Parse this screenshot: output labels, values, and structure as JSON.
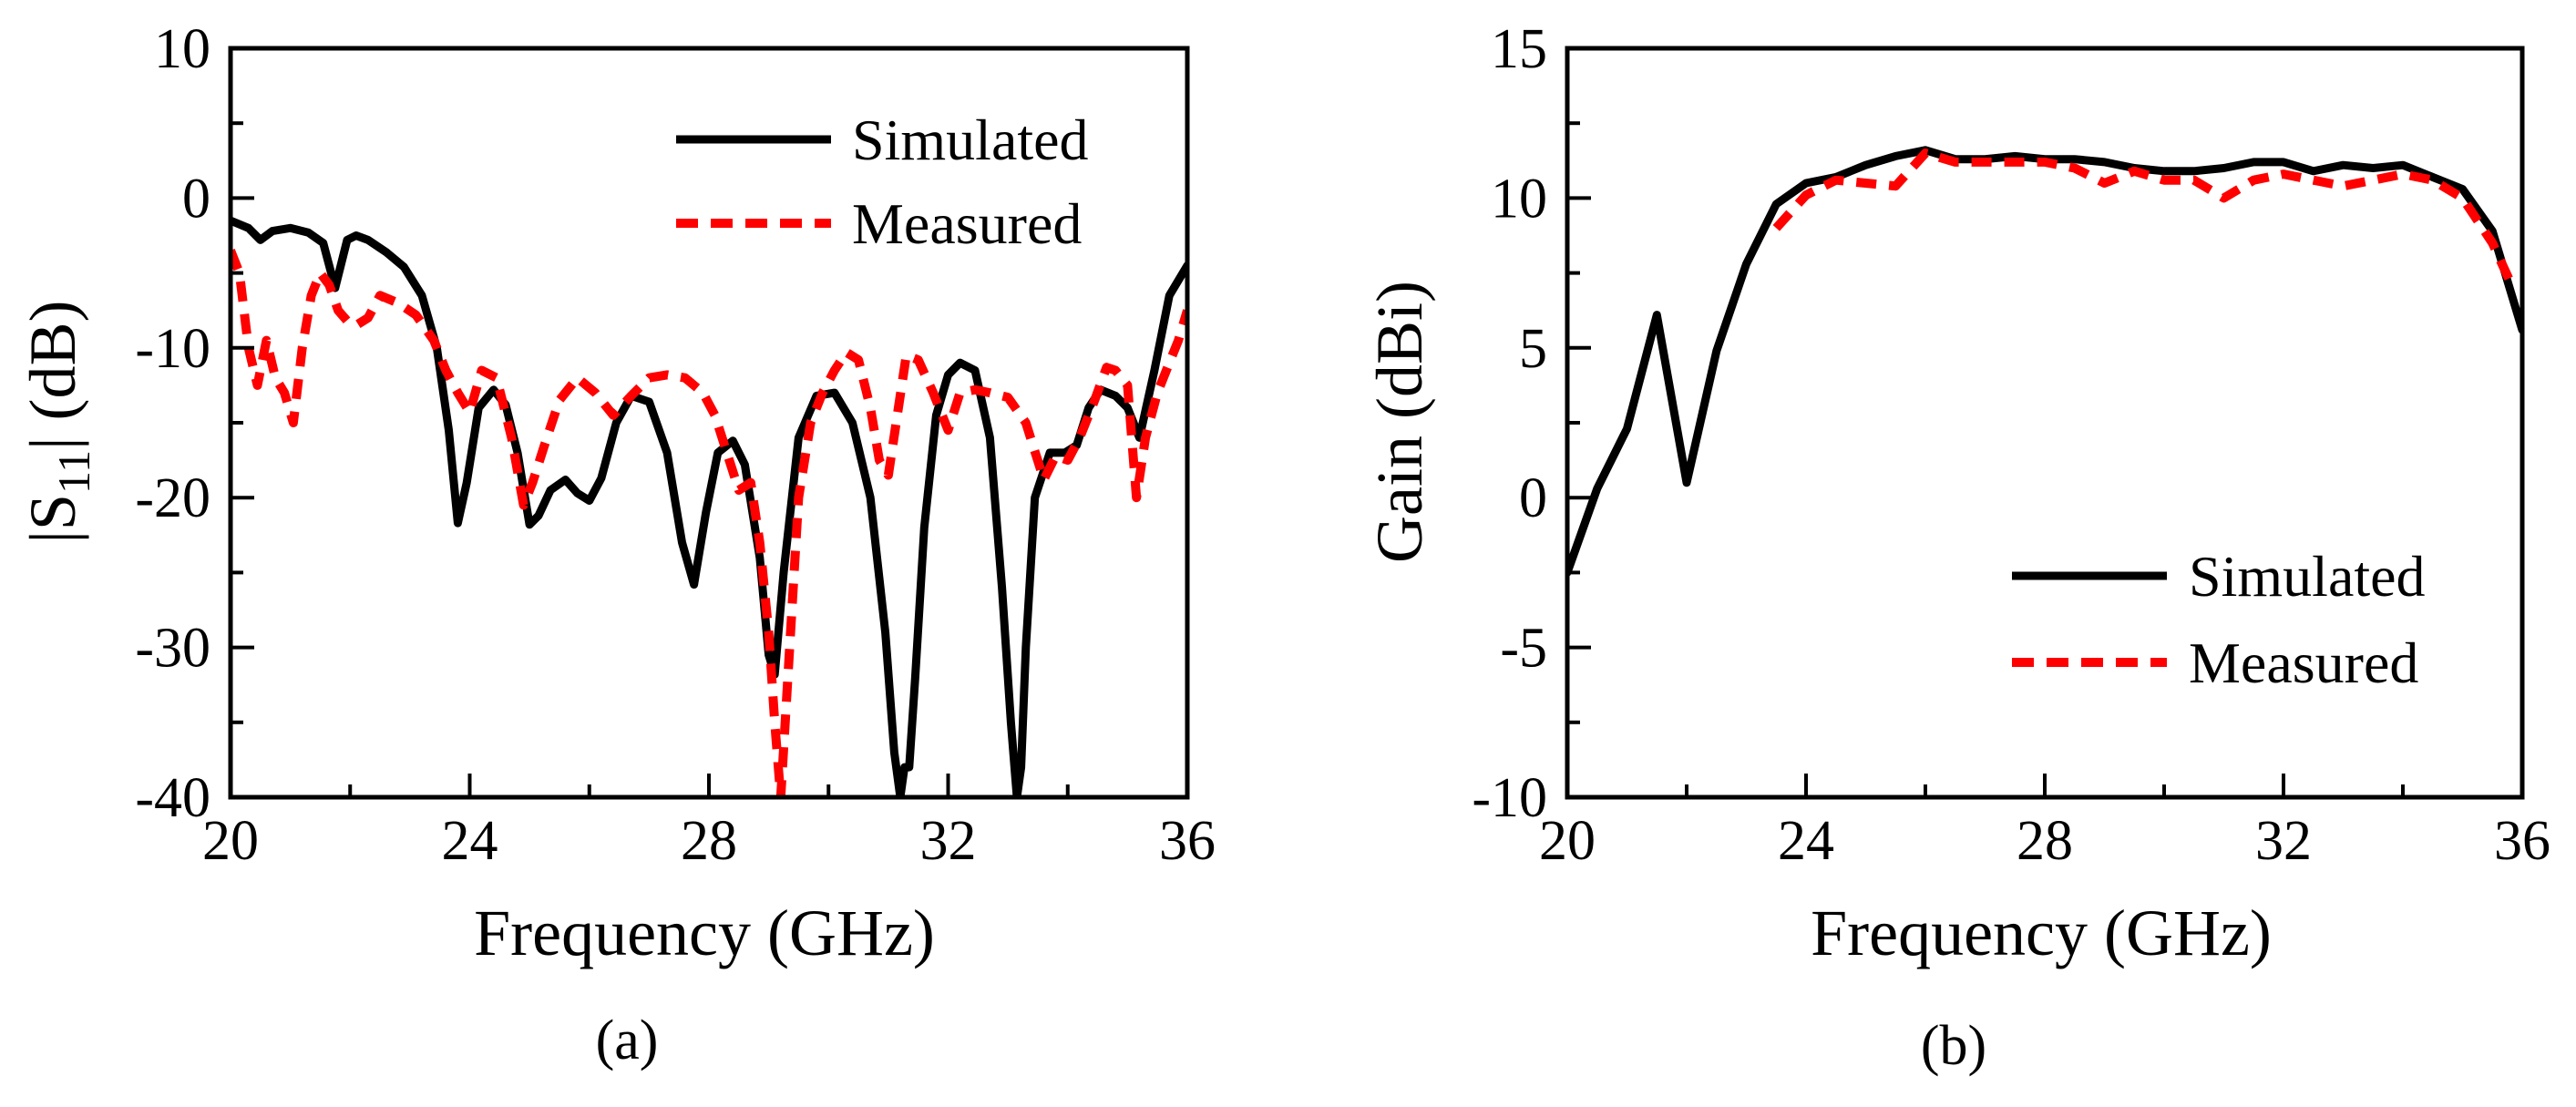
{
  "chart_data": [
    {
      "type": "line",
      "caption": "(a)",
      "xlabel": "Frequency (GHz)",
      "ylabel_parts": {
        "pre": "|S",
        "sub": "11",
        "post": "| (dB)"
      },
      "xlim": [
        20,
        36
      ],
      "ylim": [
        -40,
        10
      ],
      "xticks": [
        20,
        24,
        28,
        32,
        36
      ],
      "xtick_labels": [
        "20",
        "24",
        "28",
        "32",
        "36"
      ],
      "yticks": [
        -40,
        -30,
        -20,
        -10,
        0,
        10
      ],
      "ytick_labels": [
        "-40",
        "-30",
        "-20",
        "-10",
        "0",
        "10"
      ],
      "grid": false,
      "legend_position": "top-right",
      "series": [
        {
          "name": "Simulated",
          "color": "#000000",
          "style": "solid",
          "x": [
            20.0,
            20.3,
            20.5,
            20.7,
            21.0,
            21.3,
            21.55,
            21.75,
            21.95,
            22.1,
            22.3,
            22.6,
            22.9,
            23.2,
            23.45,
            23.65,
            23.8,
            23.95,
            24.15,
            24.4,
            24.6,
            24.8,
            25.0,
            25.15,
            25.35,
            25.6,
            25.8,
            26.0,
            26.2,
            26.45,
            26.7,
            27.0,
            27.3,
            27.55,
            27.75,
            27.95,
            28.15,
            28.4,
            28.6,
            28.85,
            29.0,
            29.1,
            29.25,
            29.5,
            29.8,
            30.1,
            30.4,
            30.7,
            30.95,
            31.1,
            31.2,
            31.27,
            31.35,
            31.45,
            31.6,
            31.8,
            32.0,
            32.2,
            32.45,
            32.7,
            32.9,
            33.05,
            33.15,
            33.22,
            33.3,
            33.45,
            33.7,
            33.95,
            34.15,
            34.35,
            34.55,
            34.8,
            35.0,
            35.2,
            35.45,
            35.7,
            36.0
          ],
          "y": [
            -1.5,
            -2.0,
            -2.8,
            -2.2,
            -2.0,
            -2.3,
            -3.0,
            -6.0,
            -2.8,
            -2.5,
            -2.8,
            -3.6,
            -4.6,
            -6.5,
            -10.0,
            -15.5,
            -21.7,
            -19.0,
            -14.0,
            -12.8,
            -13.8,
            -17.0,
            -21.8,
            -21.2,
            -19.5,
            -18.8,
            -19.7,
            -20.2,
            -18.7,
            -15.0,
            -13.2,
            -13.6,
            -17.0,
            -23.0,
            -25.8,
            -21.0,
            -17.0,
            -16.2,
            -17.8,
            -24.0,
            -30.5,
            -31.8,
            -25.0,
            -16.0,
            -13.2,
            -13.0,
            -15.0,
            -20.0,
            -29.0,
            -37.0,
            -40.0,
            -38.0,
            -38.0,
            -32.0,
            -22.0,
            -14.5,
            -11.8,
            -11.0,
            -11.5,
            -16.0,
            -26.0,
            -35.0,
            -40.0,
            -38.0,
            -30.0,
            -20.0,
            -17.0,
            -17.0,
            -16.5,
            -14.0,
            -12.8,
            -13.2,
            -14.0,
            -16.0,
            -11.5,
            -6.5,
            -4.5
          ]
        },
        {
          "name": "Measured",
          "color": "#ff0000",
          "style": "dashed",
          "x": [
            20.0,
            20.15,
            20.3,
            20.45,
            20.6,
            20.75,
            20.9,
            21.05,
            21.2,
            21.35,
            21.5,
            21.65,
            21.8,
            21.95,
            22.1,
            22.3,
            22.5,
            22.8,
            23.1,
            23.4,
            23.6,
            23.8,
            24.0,
            24.2,
            24.45,
            24.7,
            24.9,
            25.05,
            25.25,
            25.5,
            25.8,
            26.1,
            26.4,
            26.7,
            27.0,
            27.3,
            27.6,
            27.9,
            28.1,
            28.3,
            28.5,
            28.7,
            28.85,
            29.0,
            29.1,
            29.2,
            29.35,
            29.5,
            29.7,
            29.9,
            30.1,
            30.3,
            30.5,
            30.7,
            30.85,
            31.0,
            31.15,
            31.3,
            31.5,
            31.75,
            32.0,
            32.2,
            32.45,
            32.7,
            33.0,
            33.3,
            33.6,
            33.8,
            34.0,
            34.2,
            34.45,
            34.65,
            34.8,
            35.0,
            35.15,
            35.3,
            35.5,
            35.7,
            35.85,
            36.0
          ],
          "y": [
            -3.5,
            -5.0,
            -10.0,
            -12.5,
            -9.5,
            -12.0,
            -13.0,
            -15.0,
            -10.0,
            -6.5,
            -5.0,
            -5.8,
            -7.5,
            -8.2,
            -8.5,
            -8.0,
            -6.5,
            -7.0,
            -7.8,
            -9.5,
            -11.5,
            -13.0,
            -14.3,
            -11.5,
            -12.0,
            -16.0,
            -20.5,
            -19.0,
            -16.5,
            -13.5,
            -12.0,
            -13.0,
            -14.5,
            -13.2,
            -12.0,
            -11.8,
            -12.0,
            -13.0,
            -14.5,
            -17.0,
            -19.5,
            -19.0,
            -23.0,
            -29.0,
            -35.0,
            -40.0,
            -30.0,
            -20.0,
            -15.0,
            -13.0,
            -11.5,
            -10.3,
            -10.8,
            -14.0,
            -17.5,
            -18.5,
            -14.5,
            -10.5,
            -10.8,
            -13.0,
            -15.5,
            -13.0,
            -12.8,
            -13.0,
            -13.3,
            -15.0,
            -18.8,
            -17.2,
            -17.5,
            -16.0,
            -13.5,
            -11.3,
            -11.5,
            -12.5,
            -20.0,
            -16.0,
            -13.0,
            -11.0,
            -9.5,
            -7.5
          ]
        }
      ]
    },
    {
      "type": "line",
      "caption": "(b)",
      "xlabel": "Frequency (GHz)",
      "ylabel": "Gain (dBi)",
      "xlim": [
        20,
        36
      ],
      "ylim": [
        -10,
        15
      ],
      "xticks": [
        20,
        24,
        28,
        32,
        36
      ],
      "xtick_labels": [
        "20",
        "24",
        "28",
        "32",
        "36"
      ],
      "yticks": [
        -10,
        -5,
        0,
        5,
        10,
        15
      ],
      "ytick_labels": [
        "-10",
        "-5",
        "0",
        "5",
        "10",
        "15"
      ],
      "grid": false,
      "legend_position": "center-right",
      "series": [
        {
          "name": "Simulated",
          "color": "#000000",
          "style": "solid",
          "x": [
            20.0,
            20.5,
            21.0,
            21.5,
            22.0,
            22.5,
            23.0,
            23.5,
            24.0,
            24.5,
            25.0,
            25.5,
            26.0,
            26.5,
            27.0,
            27.5,
            28.0,
            28.5,
            29.0,
            29.5,
            30.0,
            30.5,
            31.0,
            31.5,
            32.0,
            32.5,
            33.0,
            33.5,
            34.0,
            34.5,
            35.0,
            35.5,
            36.0
          ],
          "y": [
            -2.5,
            0.3,
            2.3,
            6.1,
            0.5,
            4.9,
            7.8,
            9.8,
            10.5,
            10.7,
            11.1,
            11.4,
            11.6,
            11.3,
            11.3,
            11.4,
            11.3,
            11.3,
            11.2,
            11.0,
            10.9,
            10.9,
            11.0,
            11.2,
            11.2,
            10.9,
            11.1,
            11.0,
            11.1,
            10.7,
            10.3,
            8.9,
            5.6
          ]
        },
        {
          "name": "Measured",
          "color": "#ff0000",
          "style": "dashed",
          "x": [
            23.5,
            24.0,
            24.5,
            25.0,
            25.5,
            26.0,
            26.5,
            27.0,
            27.5,
            28.0,
            28.5,
            29.0,
            29.5,
            30.0,
            30.5,
            31.0,
            31.5,
            32.0,
            32.5,
            33.0,
            33.5,
            34.0,
            34.5,
            35.0,
            35.5,
            35.8
          ],
          "y": [
            9.0,
            10.1,
            10.6,
            10.5,
            10.4,
            11.5,
            11.2,
            11.2,
            11.2,
            11.2,
            11.0,
            10.5,
            10.9,
            10.6,
            10.6,
            10.0,
            10.6,
            10.8,
            10.6,
            10.4,
            10.6,
            10.8,
            10.6,
            10.0,
            8.5,
            7.2
          ]
        }
      ]
    }
  ]
}
